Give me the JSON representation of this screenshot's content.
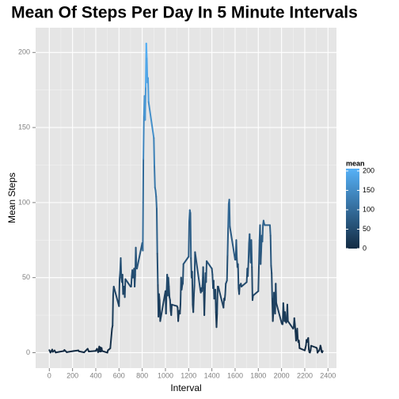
{
  "chart_data": {
    "type": "line",
    "title": "Mean Of Steps Per Day In 5 Minute Intervals",
    "x_label": "Interval",
    "y_label": "Mean Steps",
    "x": [
      0,
      10,
      25,
      30,
      45,
      55,
      125,
      130,
      150,
      210,
      250,
      255,
      300,
      330,
      340,
      400,
      410,
      420,
      430,
      435,
      440,
      445,
      450,
      455,
      500,
      505,
      515,
      525,
      540,
      545,
      550,
      555,
      600,
      605,
      610,
      615,
      620,
      625,
      630,
      635,
      640,
      645,
      650,
      655,
      700,
      705,
      710,
      715,
      720,
      725,
      730,
      735,
      740,
      745,
      750,
      755,
      800,
      805,
      810,
      815,
      820,
      825,
      830,
      835,
      840,
      845,
      850,
      855,
      900,
      905,
      910,
      915,
      920,
      925,
      930,
      935,
      940,
      945,
      950,
      955,
      1000,
      1005,
      1010,
      1015,
      1020,
      1025,
      1030,
      1035,
      1040,
      1045,
      1050,
      1055,
      1100,
      1105,
      1110,
      1115,
      1120,
      1125,
      1130,
      1135,
      1140,
      1145,
      1150,
      1155,
      1200,
      1205,
      1210,
      1215,
      1220,
      1225,
      1230,
      1235,
      1240,
      1245,
      1250,
      1255,
      1300,
      1305,
      1310,
      1315,
      1320,
      1325,
      1330,
      1335,
      1340,
      1345,
      1350,
      1355,
      1400,
      1405,
      1410,
      1415,
      1420,
      1425,
      1430,
      1435,
      1440,
      1445,
      1450,
      1455,
      1500,
      1505,
      1510,
      1515,
      1520,
      1525,
      1530,
      1535,
      1540,
      1545,
      1550,
      1555,
      1600,
      1605,
      1610,
      1615,
      1620,
      1625,
      1630,
      1635,
      1640,
      1645,
      1650,
      1655,
      1700,
      1705,
      1710,
      1715,
      1720,
      1725,
      1730,
      1735,
      1740,
      1745,
      1750,
      1755,
      1800,
      1805,
      1810,
      1815,
      1820,
      1825,
      1830,
      1835,
      1840,
      1845,
      1850,
      1855,
      1900,
      1905,
      1910,
      1915,
      1920,
      1925,
      1930,
      1935,
      1940,
      1945,
      1950,
      1955,
      2000,
      2005,
      2010,
      2015,
      2020,
      2025,
      2030,
      2035,
      2040,
      2045,
      2050,
      2055,
      2100,
      2105,
      2110,
      2115,
      2120,
      2125,
      2130,
      2135,
      2140,
      2145,
      2150,
      2155,
      2200,
      2205,
      2210,
      2215,
      2220,
      2225,
      2230,
      2235,
      2240,
      2245,
      2250,
      2255,
      2300,
      2305,
      2310,
      2315,
      2320,
      2325,
      2330,
      2335,
      2340,
      2345,
      2350,
      2355
    ],
    "values": [
      1.7,
      0.1,
      2.1,
      0.5,
      1.5,
      0.1,
      1.1,
      1.8,
      0.3,
      1.1,
      1.5,
      0.9,
      0.2,
      2.6,
      0.8,
      1.2,
      2.6,
      0.3,
      4.1,
      0.7,
      3.5,
      0.8,
      3.1,
      1.1,
      0,
      1.6,
      2.2,
      2.9,
      16,
      18,
      39,
      44,
      31,
      49,
      54,
      63,
      50,
      47,
      52,
      39,
      44,
      44,
      37,
      49,
      44,
      44,
      51,
      55,
      50,
      51,
      56,
      44,
      52,
      70,
      58,
      56,
      73,
      68,
      129,
      158,
      171,
      155,
      177,
      206,
      196,
      180,
      183,
      167,
      143,
      124,
      110,
      108,
      104,
      96,
      66,
      45,
      24,
      39,
      35,
      21,
      41,
      26,
      42,
      52,
      38,
      50,
      44,
      37,
      35,
      28,
      25,
      32,
      31,
      30,
      21,
      26,
      28,
      26,
      33,
      50,
      42,
      45,
      46,
      59,
      64,
      88,
      95,
      93,
      63,
      50,
      54,
      32,
      27,
      38,
      45,
      67,
      42,
      40,
      43,
      41,
      46,
      57,
      43,
      25,
      40,
      53,
      47,
      61,
      56,
      52,
      43,
      48,
      36,
      37,
      42,
      27,
      17,
      26,
      44,
      44,
      30,
      36,
      35,
      39,
      46,
      47,
      48,
      65,
      83,
      99,
      102,
      84,
      62,
      62,
      75,
      63,
      57,
      59,
      43,
      39,
      45,
      45,
      46,
      44,
      47,
      56,
      51,
      61,
      73,
      79,
      69,
      60,
      75,
      57,
      35,
      38,
      41,
      58,
      75,
      85,
      59,
      68,
      78,
      74,
      85,
      88,
      86,
      85,
      85,
      78,
      58,
      53,
      36,
      21,
      27,
      40,
      30,
      26,
      46,
      33,
      20,
      19,
      19,
      33,
      27,
      21,
      27,
      21,
      20,
      21,
      32,
      21,
      16,
      17,
      23,
      19,
      14,
      8,
      14,
      16,
      9,
      7,
      8,
      3,
      1.5,
      3,
      4.8,
      8.5,
      7.1,
      8.7,
      9.8,
      2.2,
      0.3,
      0.1,
      1.6,
      4.6,
      3.3,
      2.8,
      0,
      0.8,
      1,
      1.6,
      2.6,
      4.7,
      3.3,
      0.6,
      0.2,
      1.1
    ],
    "color_scale": {
      "low": "#132B43",
      "high": "#56B1F7"
    },
    "legend": {
      "title": "mean",
      "ticks": [
        0,
        50,
        100,
        150,
        200
      ]
    },
    "xlim": [
      -118,
      2473
    ],
    "ylim": [
      -10.3,
      216.5
    ],
    "xticks": [
      0,
      200,
      400,
      600,
      800,
      1000,
      1200,
      1400,
      1600,
      1800,
      2000,
      2200,
      2400
    ],
    "yticks": [
      0,
      50,
      100,
      150,
      200
    ],
    "grid": true
  }
}
